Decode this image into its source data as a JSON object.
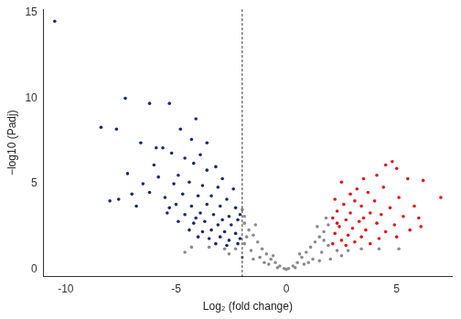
{
  "chart_data": {
    "type": "scatter",
    "x_label": "Log₂ (fold change)",
    "y_label": "−log10 (Padj)",
    "xlim": [
      -11,
      7.5
    ],
    "xticks": [
      -10,
      -5,
      0,
      5
    ],
    "ylim": [
      -0.4,
      15.2
    ],
    "yticks": [
      0,
      5,
      10,
      15
    ],
    "grid": false,
    "vline": {
      "x": -2,
      "line_style": "dashed",
      "color": "#000000"
    },
    "series": [
      {
        "color": "#8c8c8c",
        "marker": "circle",
        "x": [
          0,
          0.1,
          -0.1,
          0.3,
          -0.3,
          0.5,
          -0.5,
          0.7,
          -0.7,
          0.9,
          -0.9,
          1.1,
          -1.1,
          1.3,
          -1.3,
          1.5,
          -1.5,
          1.7,
          -1.7,
          1.9,
          -1.9,
          1.8,
          -1.9,
          -2.0,
          1.6,
          -1.6,
          1.2,
          -1.2,
          0.8,
          -0.8,
          1.9,
          -1.9,
          2.3,
          -2.3,
          2.8,
          -2.8,
          3.4,
          -3.5,
          4.2,
          -4.3,
          5.1,
          -4.6,
          2.5,
          -2.6,
          1.5,
          -1.5,
          0.4,
          -0.4,
          1.0,
          -1.0,
          2.0,
          -2.0,
          1.4,
          -1.4,
          1.7,
          -1.8,
          0.6,
          -0.6
        ],
        "values": [
          0,
          0.05,
          0.05,
          0.2,
          0.2,
          0.4,
          0.4,
          0.7,
          0.6,
          1.0,
          0.9,
          1.3,
          1.2,
          1.6,
          1.6,
          1.9,
          2.0,
          2.2,
          2.3,
          2.6,
          2.7,
          3.0,
          3.1,
          3.5,
          1.0,
          1.1,
          0.6,
          0.7,
          0.3,
          0.3,
          1.4,
          1.5,
          1.1,
          1.2,
          1.1,
          1.2,
          1.2,
          1.3,
          1.2,
          1.3,
          1.2,
          1.0,
          0.8,
          0.9,
          0.5,
          0.6,
          0.1,
          0.1,
          0.4,
          0.4,
          0.6,
          0.7,
          2.5,
          2.6,
          1.7,
          1.9,
          0.9,
          0.8
        ]
      },
      {
        "color": "#1c2a6b",
        "marker": "circle",
        "x": [
          -10.5,
          -7.3,
          -6.2,
          -5.3,
          -4.1,
          -8.4,
          -7.7,
          -4.8,
          -6.6,
          -4.3,
          -3.6,
          -5.9,
          -5.6,
          -5.2,
          -4.6,
          -3.9,
          -6.0,
          -4.2,
          -3.2,
          -7.2,
          -5.8,
          -4.9,
          -3.6,
          -2.9,
          -6.5,
          -5.1,
          -4.4,
          -3.8,
          -3.1,
          -2.4,
          -7.0,
          -6.2,
          -5.5,
          -4.7,
          -4.0,
          -3.4,
          -2.7,
          -8.0,
          -7.6,
          -6.8,
          -5.0,
          -4.3,
          -3.6,
          -3.0,
          -2.3,
          -5.4,
          -4.6,
          -3.9,
          -3.3,
          -2.6,
          -2.1,
          -4.9,
          -4.2,
          -3.7,
          -3.1,
          -2.5,
          -2.2,
          -4.4,
          -3.8,
          -3.4,
          -2.8,
          -2.3,
          -4.0,
          -3.5,
          -3.0,
          -2.6,
          -2.1,
          -3.2,
          -2.7,
          -2.2,
          -5.3,
          -4.1,
          -2.9
        ],
        "values": [
          14.5,
          10.0,
          9.7,
          9.7,
          8.8,
          8.3,
          8.2,
          8.2,
          7.4,
          7.6,
          7.4,
          7.1,
          7.1,
          6.8,
          6.5,
          6.7,
          6.1,
          6.2,
          6.0,
          5.6,
          5.4,
          5.5,
          5.8,
          5.3,
          5.0,
          5.0,
          5.1,
          4.9,
          4.8,
          4.7,
          4.4,
          4.5,
          4.2,
          4.4,
          4.3,
          4.3,
          4.1,
          4.0,
          4.1,
          3.7,
          3.8,
          3.7,
          3.8,
          3.7,
          3.6,
          3.3,
          3.2,
          3.3,
          3.2,
          3.1,
          3.2,
          2.8,
          2.7,
          2.8,
          2.6,
          2.6,
          2.9,
          2.3,
          2.2,
          2.3,
          2.2,
          2.1,
          1.9,
          1.8,
          1.9,
          1.7,
          1.8,
          1.5,
          1.4,
          1.5,
          3.6,
          3.0,
          2.9
        ]
      },
      {
        "color": "#e0151b",
        "marker": "circle",
        "x": [
          4.8,
          5.0,
          4.5,
          4.1,
          3.5,
          5.5,
          6.2,
          2.5,
          3.2,
          4.4,
          2.9,
          3.7,
          5.1,
          7.0,
          2.2,
          3.1,
          4.0,
          2.6,
          3.4,
          4.7,
          5.8,
          2.3,
          2.9,
          3.8,
          4.3,
          5.3,
          6.0,
          2.1,
          2.7,
          3.3,
          4.1,
          4.9,
          2.4,
          3.0,
          3.6,
          4.5,
          5.6,
          2.2,
          2.8,
          3.4,
          4.2,
          2.5,
          3.1,
          2.1,
          2.7,
          3.8,
          6.1,
          5.0,
          2.3,
          3.5
        ],
        "values": [
          6.3,
          5.9,
          6.1,
          5.5,
          5.3,
          5.3,
          5.2,
          5.1,
          4.7,
          4.8,
          4.4,
          4.5,
          4.2,
          4.2,
          4.1,
          4.0,
          4.0,
          3.8,
          3.7,
          3.6,
          3.7,
          3.4,
          3.3,
          3.3,
          3.2,
          3.1,
          3.0,
          3.0,
          2.9,
          2.8,
          2.7,
          2.6,
          2.5,
          2.4,
          2.3,
          2.2,
          2.3,
          2.1,
          2.0,
          1.9,
          1.8,
          1.7,
          1.6,
          1.5,
          1.4,
          1.5,
          2.5,
          1.9,
          2.7,
          3.0
        ]
      }
    ]
  }
}
